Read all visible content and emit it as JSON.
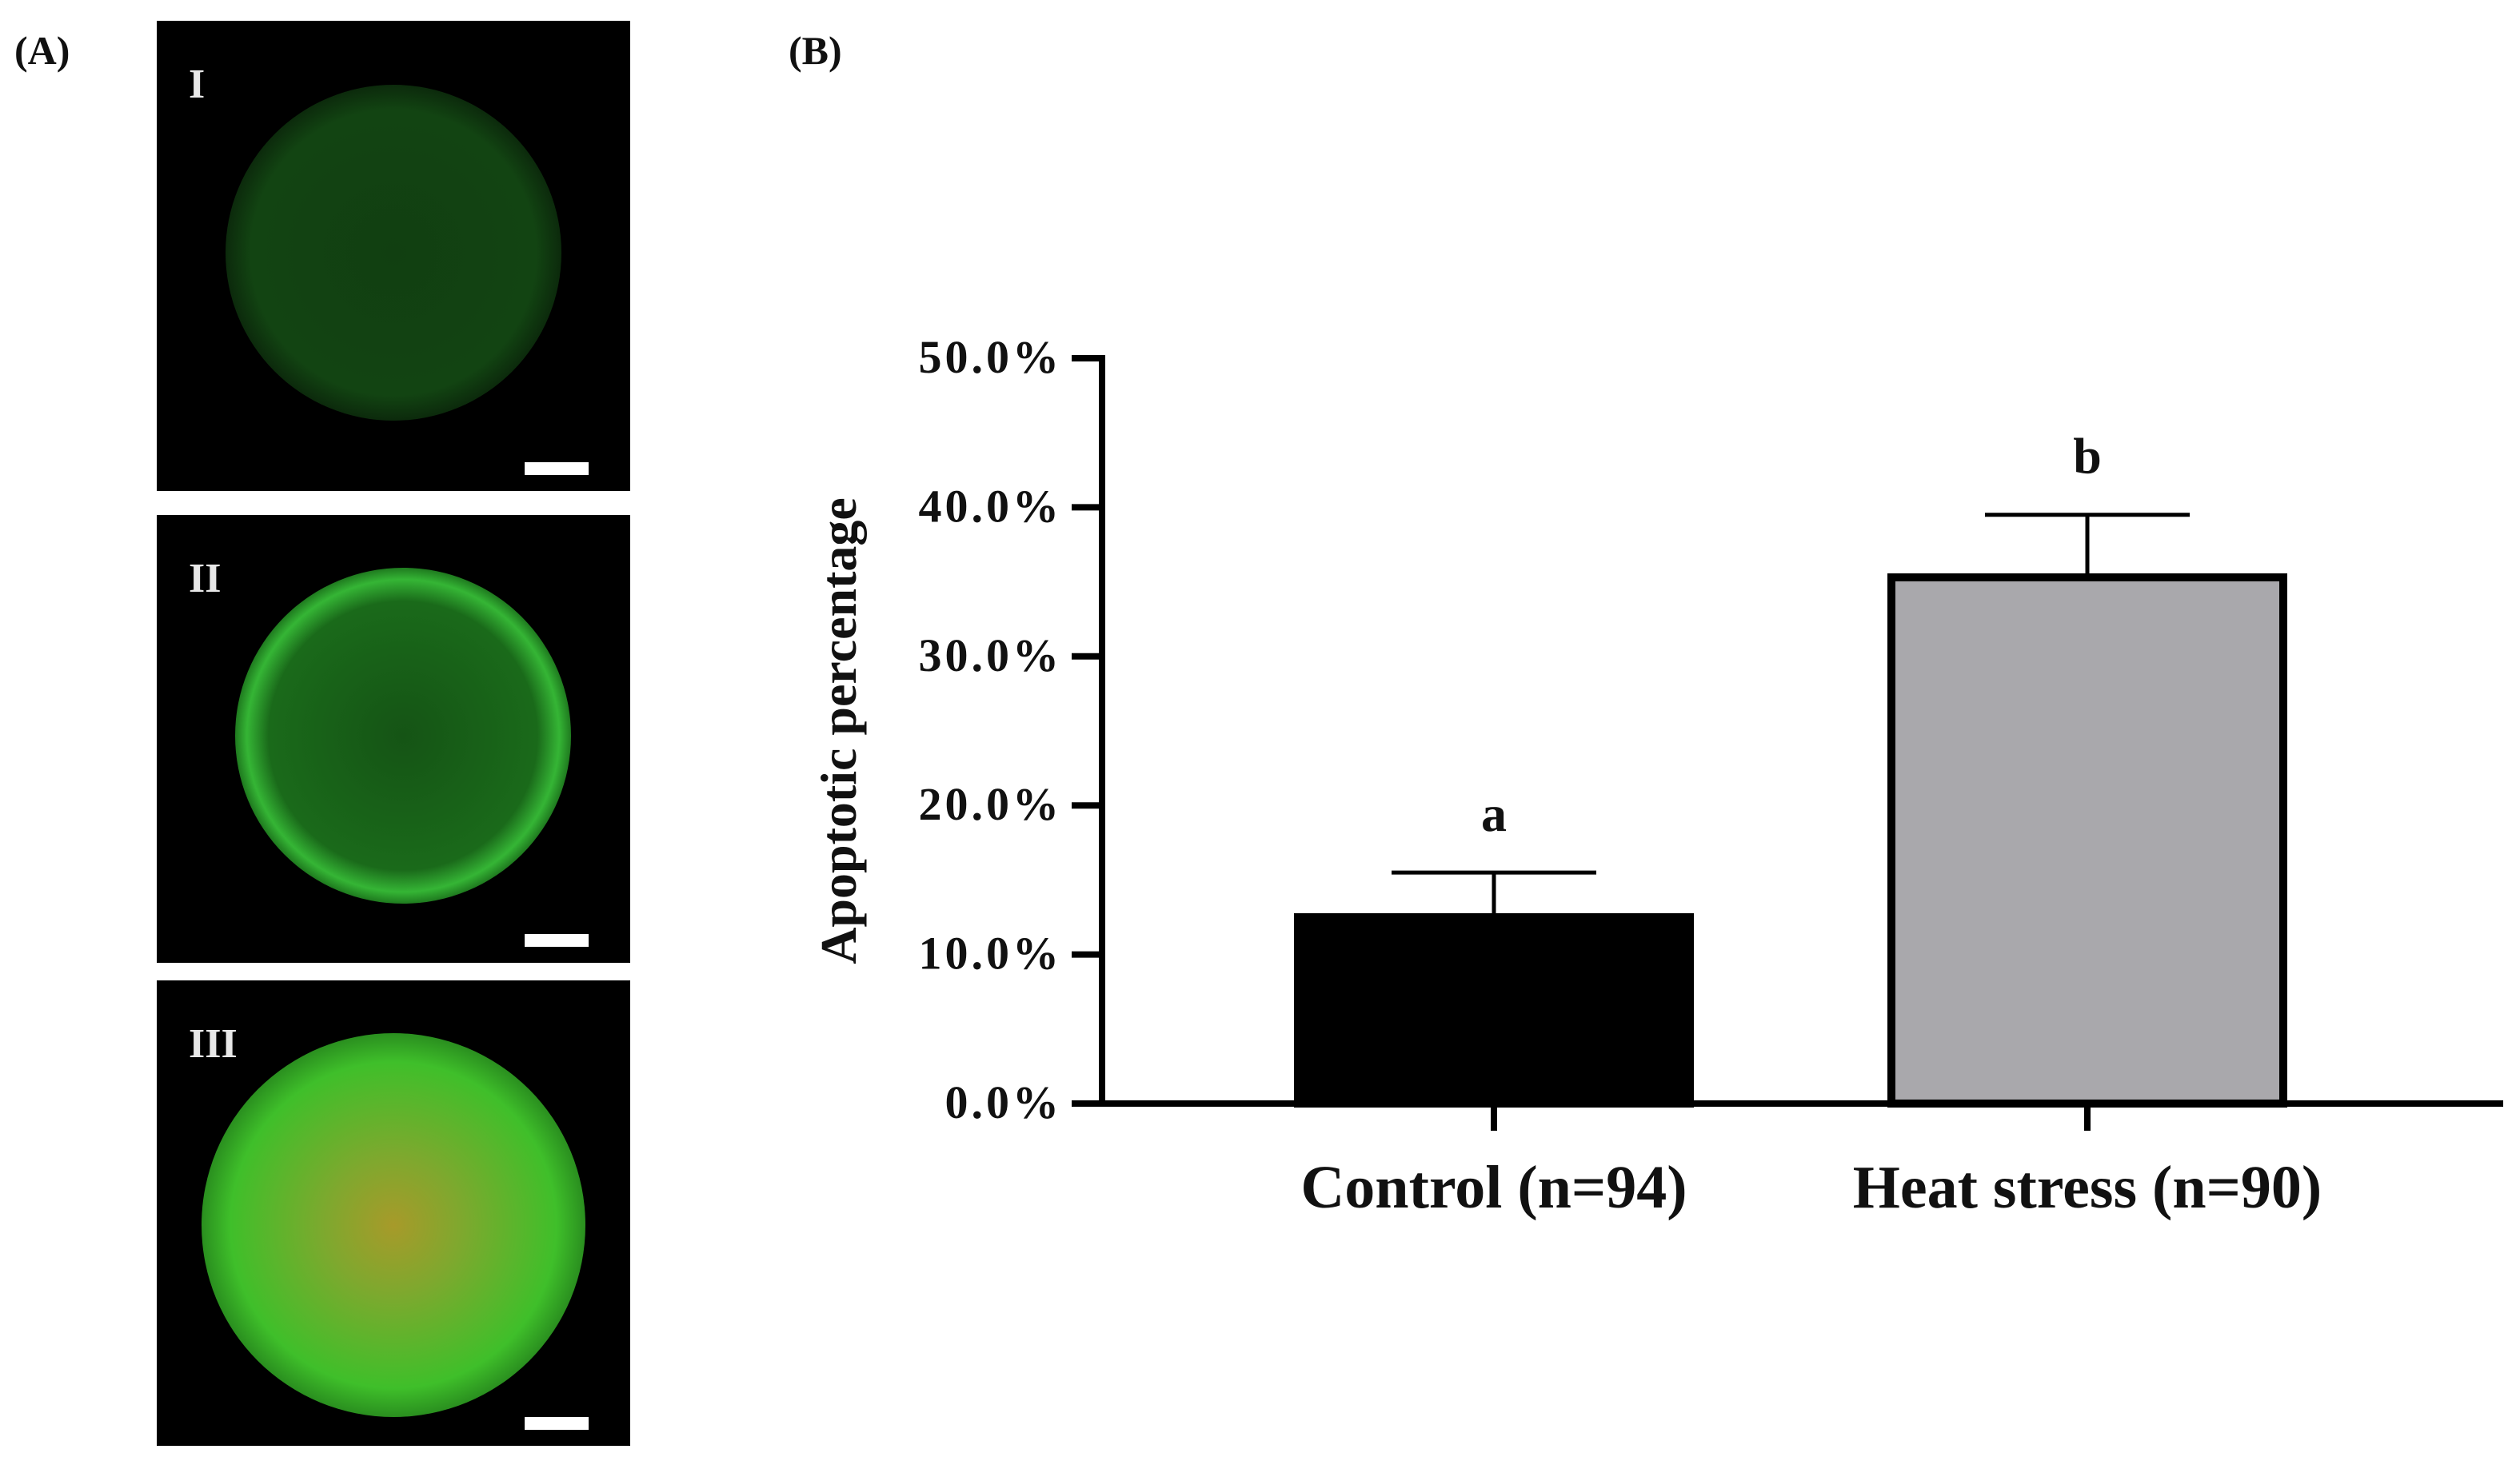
{
  "panel_labels": {
    "a": "(A)",
    "b": "(B)"
  },
  "micrographs": [
    {
      "label": "I",
      "staining": "faint-green",
      "colors": {
        "core": "#0f3a0f",
        "rim": "#154a15"
      }
    },
    {
      "label": "II",
      "staining": "green-rim",
      "colors": {
        "core": "#155a15",
        "rim": "#2fa52f"
      }
    },
    {
      "label": "III",
      "staining": "bright-green-with-red-center",
      "colors": {
        "core": "#7c9a2a",
        "rim": "#3fbf2a"
      }
    }
  ],
  "chart_data": {
    "type": "bar",
    "categories": [
      "Control (n=94)",
      "Heat stress (n=90)"
    ],
    "values": [
      12.5,
      35.3
    ],
    "errors": [
      3.0,
      4.2
    ],
    "significance_letters": [
      "a",
      "b"
    ],
    "bar_colors": [
      "#000000",
      "#a9a8ac"
    ],
    "ylabel": "Apoptotic percentage",
    "ylim": [
      0,
      50
    ],
    "yticks": [
      0,
      10,
      20,
      30,
      40,
      50
    ],
    "ytick_labels": [
      "0.0%",
      "10.0%",
      "20.0%",
      "30.0%",
      "40.0%",
      "50.0%"
    ],
    "grid": false
  }
}
